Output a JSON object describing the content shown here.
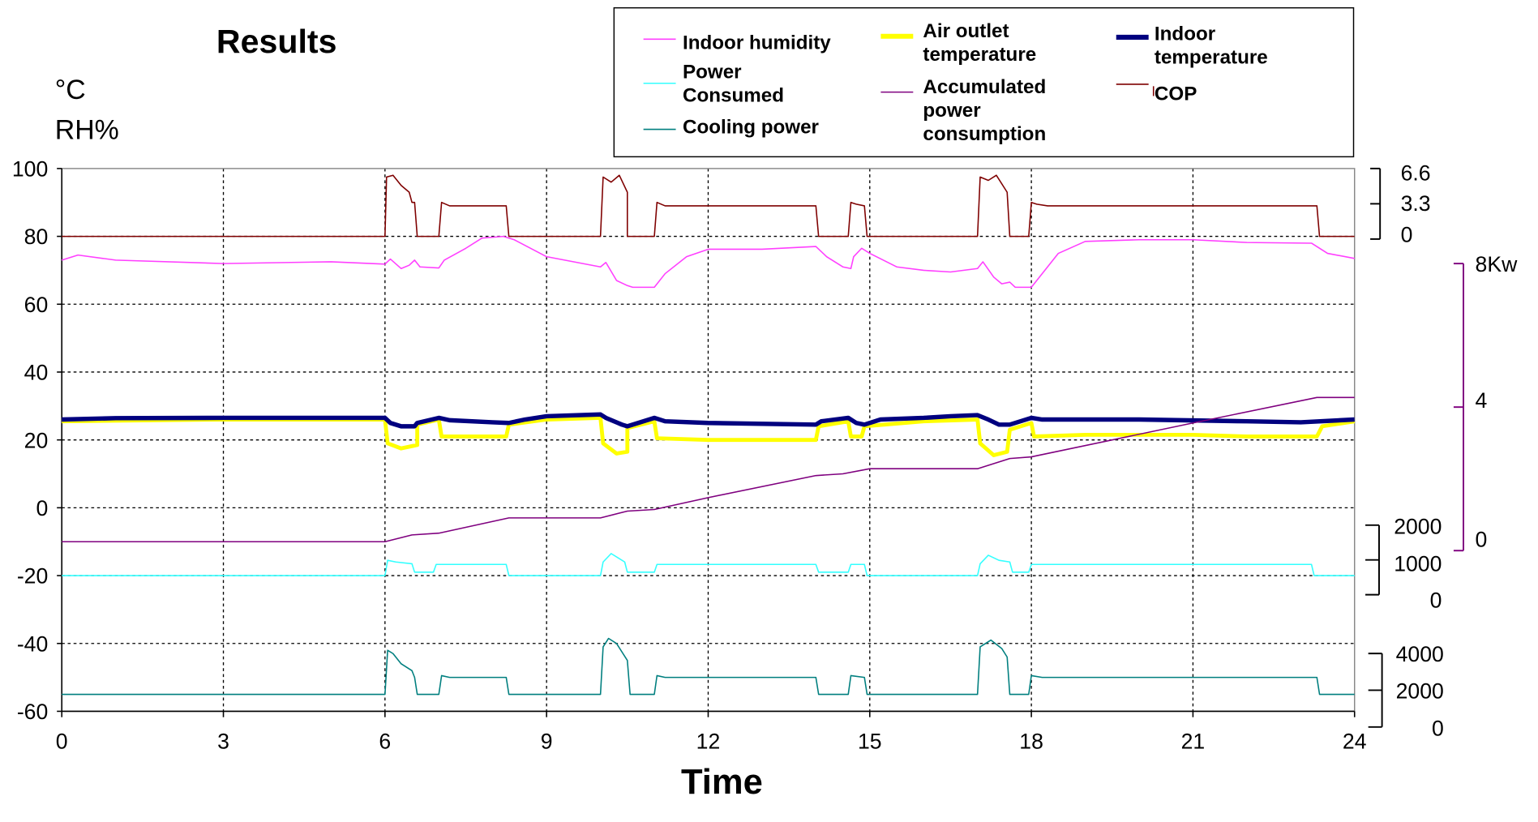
{
  "chart_data": {
    "type": "line",
    "title": "Results",
    "ylabel": [
      "°C",
      "RH%"
    ],
    "xlabel": "Time",
    "xlim": [
      0,
      24
    ],
    "ylim": [
      -60,
      100
    ],
    "x_ticks": [
      "0",
      "3",
      "6",
      "9",
      "12",
      "15",
      "18",
      "21",
      "24"
    ],
    "y_ticks": [
      "100",
      "80",
      "60",
      "40",
      "20",
      "0",
      "-20",
      "-40",
      "-60"
    ],
    "grid": true,
    "legend_position": "top-right",
    "legend": [
      {
        "label": [
          "Indoor humidity"
        ],
        "color": "#ff3fff"
      },
      {
        "label": [
          "Air outlet",
          "temperature"
        ],
        "color": "#ffff00"
      },
      {
        "label": [
          "Indoor",
          "temperature"
        ],
        "color": "#00007f"
      },
      {
        "label": [
          "Power",
          "Consumed"
        ],
        "color": "#33ffff"
      },
      {
        "label": [
          "Accumulated",
          "power",
          "consumption"
        ],
        "color": "#7f007f"
      },
      {
        "label": [
          "COP"
        ],
        "color": "#7f0000"
      },
      {
        "label": [
          "Cooling power"
        ],
        "color": "#007f7f"
      }
    ],
    "secondary_axes": [
      {
        "series": "COP",
        "ticks": [
          "6.6",
          "3.3",
          "0"
        ],
        "color": "#000000"
      },
      {
        "series": "Accumulated power consumption",
        "ticks": [
          "8Kw",
          "4",
          "0"
        ],
        "color": "#7f007f"
      },
      {
        "series": "Power Consumed",
        "ticks": [
          "2000",
          "1000",
          "0"
        ],
        "color": "#000000"
      },
      {
        "series": "Cooling power",
        "ticks": [
          "4000",
          "2000",
          "0"
        ],
        "color": "#000000"
      }
    ],
    "series": [
      {
        "name": "Indoor humidity",
        "color": "#ff3fff",
        "width": 1.3,
        "points": [
          [
            0,
            73
          ],
          [
            0.3,
            74.5
          ],
          [
            1,
            73
          ],
          [
            3,
            72
          ],
          [
            5,
            72.5
          ],
          [
            6,
            71.8
          ],
          [
            6.1,
            73.3
          ],
          [
            6.3,
            70.5
          ],
          [
            6.45,
            71.5
          ],
          [
            6.55,
            73
          ],
          [
            6.65,
            71
          ],
          [
            7,
            70.7
          ],
          [
            7.1,
            73
          ],
          [
            7.5,
            76.5
          ],
          [
            7.8,
            79.5
          ],
          [
            8.2,
            80
          ],
          [
            8.4,
            79
          ],
          [
            9,
            74
          ],
          [
            10,
            71
          ],
          [
            10.1,
            72.3
          ],
          [
            10.3,
            67
          ],
          [
            10.5,
            65.5
          ],
          [
            10.6,
            65
          ],
          [
            11,
            65
          ],
          [
            11.2,
            69
          ],
          [
            11.6,
            74
          ],
          [
            12,
            76.2
          ],
          [
            13,
            76.2
          ],
          [
            14,
            77
          ],
          [
            14.2,
            74
          ],
          [
            14.5,
            71
          ],
          [
            14.65,
            70.5
          ],
          [
            14.7,
            74
          ],
          [
            14.85,
            76.5
          ],
          [
            15,
            75
          ],
          [
            15.5,
            71
          ],
          [
            16,
            70
          ],
          [
            16.5,
            69.5
          ],
          [
            17,
            70.5
          ],
          [
            17.1,
            72.5
          ],
          [
            17.3,
            68
          ],
          [
            17.45,
            66
          ],
          [
            17.6,
            66.5
          ],
          [
            17.7,
            65
          ],
          [
            18,
            65
          ],
          [
            18.1,
            67
          ],
          [
            18.5,
            75
          ],
          [
            19,
            78.5
          ],
          [
            20,
            79
          ],
          [
            21,
            79
          ],
          [
            22,
            78.2
          ],
          [
            23.2,
            78
          ],
          [
            23.5,
            75
          ],
          [
            24,
            73.5
          ]
        ]
      },
      {
        "name": "Air outlet temperature",
        "color": "#ffff00",
        "width": 4,
        "points": [
          [
            0,
            25.5
          ],
          [
            3,
            26
          ],
          [
            6,
            26
          ],
          [
            6.05,
            19
          ],
          [
            6.3,
            17.5
          ],
          [
            6.6,
            18.5
          ],
          [
            6.6,
            24.5
          ],
          [
            7,
            26
          ],
          [
            7.05,
            21
          ],
          [
            8,
            21
          ],
          [
            8.25,
            21
          ],
          [
            8.3,
            24.5
          ],
          [
            9,
            26
          ],
          [
            10,
            26.5
          ],
          [
            10.05,
            19
          ],
          [
            10.3,
            16
          ],
          [
            10.5,
            16.5
          ],
          [
            10.5,
            23.5
          ],
          [
            11,
            25.5
          ],
          [
            11.05,
            20.5
          ],
          [
            12,
            20
          ],
          [
            14,
            20
          ],
          [
            14.05,
            24
          ],
          [
            14.6,
            25.5
          ],
          [
            14.65,
            21
          ],
          [
            14.85,
            21
          ],
          [
            14.9,
            24
          ],
          [
            16,
            25.5
          ],
          [
            17,
            26
          ],
          [
            17.05,
            19
          ],
          [
            17.3,
            15.5
          ],
          [
            17.55,
            16.5
          ],
          [
            17.6,
            23
          ],
          [
            18,
            25
          ],
          [
            18.05,
            21
          ],
          [
            19,
            21.5
          ],
          [
            21,
            21.5
          ],
          [
            22,
            21
          ],
          [
            23.3,
            21
          ],
          [
            23.4,
            24
          ],
          [
            24,
            25.5
          ]
        ]
      },
      {
        "name": "Indoor temperature",
        "color": "#00007f",
        "width": 4.5,
        "points": [
          [
            0,
            26
          ],
          [
            1,
            26.4
          ],
          [
            3,
            26.5
          ],
          [
            6,
            26.5
          ],
          [
            6.1,
            25
          ],
          [
            6.3,
            24
          ],
          [
            6.55,
            24
          ],
          [
            6.6,
            25
          ],
          [
            7,
            26.5
          ],
          [
            7.2,
            25.8
          ],
          [
            8,
            25.2
          ],
          [
            8.3,
            25
          ],
          [
            8.6,
            26
          ],
          [
            9,
            27
          ],
          [
            10,
            27.5
          ],
          [
            10.1,
            26.5
          ],
          [
            10.4,
            24.5
          ],
          [
            10.5,
            24
          ],
          [
            11,
            26.5
          ],
          [
            11.2,
            25.5
          ],
          [
            12,
            25
          ],
          [
            14,
            24.5
          ],
          [
            14.1,
            25.5
          ],
          [
            14.6,
            26.5
          ],
          [
            14.75,
            25
          ],
          [
            14.9,
            24.5
          ],
          [
            15.2,
            26
          ],
          [
            16,
            26.5
          ],
          [
            16.5,
            27
          ],
          [
            17,
            27.3
          ],
          [
            17.2,
            26
          ],
          [
            17.4,
            24.5
          ],
          [
            17.6,
            24.5
          ],
          [
            18,
            26.5
          ],
          [
            18.2,
            26
          ],
          [
            20,
            26
          ],
          [
            22,
            25.5
          ],
          [
            23,
            25.2
          ],
          [
            24,
            26
          ]
        ]
      },
      {
        "name": "Power Consumed",
        "color": "#33ffff",
        "width": 1.3,
        "points": [
          [
            0,
            -20
          ],
          [
            6,
            -20
          ],
          [
            6.05,
            -15.5
          ],
          [
            6.2,
            -16
          ],
          [
            6.5,
            -16.5
          ],
          [
            6.55,
            -19
          ],
          [
            6.9,
            -19
          ],
          [
            6.95,
            -16.7
          ],
          [
            8.25,
            -16.7
          ],
          [
            8.3,
            -20
          ],
          [
            10,
            -20
          ],
          [
            10.05,
            -16
          ],
          [
            10.2,
            -13.5
          ],
          [
            10.45,
            -16
          ],
          [
            10.5,
            -19
          ],
          [
            11,
            -19
          ],
          [
            11.05,
            -16.7
          ],
          [
            14,
            -16.7
          ],
          [
            14.05,
            -19
          ],
          [
            14.6,
            -19
          ],
          [
            14.65,
            -16.7
          ],
          [
            14.9,
            -16.7
          ],
          [
            14.95,
            -20
          ],
          [
            17,
            -20
          ],
          [
            17.05,
            -16.5
          ],
          [
            17.2,
            -14
          ],
          [
            17.4,
            -15.5
          ],
          [
            17.6,
            -16
          ],
          [
            17.65,
            -19
          ],
          [
            17.95,
            -19
          ],
          [
            18,
            -16.7
          ],
          [
            23.2,
            -16.7
          ],
          [
            23.25,
            -20
          ],
          [
            24,
            -20
          ]
        ]
      },
      {
        "name": "Accumulated power consumption",
        "color": "#7f007f",
        "width": 1.3,
        "points": [
          [
            0,
            -10
          ],
          [
            6,
            -10
          ],
          [
            6.5,
            -8
          ],
          [
            7,
            -7.5
          ],
          [
            8.3,
            -3
          ],
          [
            10,
            -3
          ],
          [
            10.5,
            -1
          ],
          [
            11,
            -0.5
          ],
          [
            12,
            3
          ],
          [
            14,
            9.5
          ],
          [
            14.5,
            10
          ],
          [
            15,
            11.5
          ],
          [
            17,
            11.5
          ],
          [
            17.6,
            14.5
          ],
          [
            18,
            15
          ],
          [
            21,
            25
          ],
          [
            23.3,
            32.5
          ],
          [
            24,
            32.5
          ]
        ]
      },
      {
        "name": "COP",
        "color": "#7f0000",
        "width": 1.3,
        "points": [
          [
            0,
            80
          ],
          [
            6,
            80
          ],
          [
            6.03,
            97.5
          ],
          [
            6.15,
            98
          ],
          [
            6.3,
            95
          ],
          [
            6.45,
            93
          ],
          [
            6.5,
            90
          ],
          [
            6.55,
            90
          ],
          [
            6.6,
            80
          ],
          [
            7,
            80
          ],
          [
            7.05,
            90
          ],
          [
            7.2,
            89
          ],
          [
            8.25,
            89
          ],
          [
            8.3,
            80
          ],
          [
            10,
            80
          ],
          [
            10.05,
            97.5
          ],
          [
            10.2,
            96
          ],
          [
            10.35,
            98
          ],
          [
            10.5,
            93
          ],
          [
            10.5,
            80
          ],
          [
            11,
            80
          ],
          [
            11.05,
            90
          ],
          [
            11.2,
            89
          ],
          [
            14,
            89
          ],
          [
            14.05,
            80
          ],
          [
            14.6,
            80
          ],
          [
            14.65,
            90
          ],
          [
            14.75,
            89.5
          ],
          [
            14.9,
            89
          ],
          [
            14.95,
            80
          ],
          [
            17,
            80
          ],
          [
            17.05,
            97.5
          ],
          [
            17.2,
            96.5
          ],
          [
            17.35,
            98
          ],
          [
            17.55,
            93
          ],
          [
            17.6,
            80
          ],
          [
            17.95,
            80
          ],
          [
            18,
            90
          ],
          [
            18.1,
            89.5
          ],
          [
            18.3,
            89
          ],
          [
            23.3,
            89
          ],
          [
            23.35,
            80
          ],
          [
            24,
            80
          ]
        ]
      },
      {
        "name": "Cooling power",
        "color": "#007f7f",
        "width": 1.3,
        "points": [
          [
            0,
            -55
          ],
          [
            6,
            -55
          ],
          [
            6.05,
            -42
          ],
          [
            6.15,
            -43
          ],
          [
            6.3,
            -46
          ],
          [
            6.5,
            -48
          ],
          [
            6.55,
            -50
          ],
          [
            6.6,
            -55
          ],
          [
            7,
            -55
          ],
          [
            7.05,
            -49.5
          ],
          [
            7.2,
            -50
          ],
          [
            8.25,
            -50
          ],
          [
            8.3,
            -55
          ],
          [
            10,
            -55
          ],
          [
            10.05,
            -41
          ],
          [
            10.15,
            -38.5
          ],
          [
            10.3,
            -40
          ],
          [
            10.5,
            -45
          ],
          [
            10.55,
            -55
          ],
          [
            11,
            -55
          ],
          [
            11.05,
            -49.5
          ],
          [
            11.2,
            -50
          ],
          [
            14,
            -50
          ],
          [
            14.05,
            -55
          ],
          [
            14.6,
            -55
          ],
          [
            14.65,
            -49.5
          ],
          [
            14.9,
            -50
          ],
          [
            14.95,
            -55
          ],
          [
            17,
            -55
          ],
          [
            17.05,
            -41
          ],
          [
            17.25,
            -39
          ],
          [
            17.45,
            -41.5
          ],
          [
            17.55,
            -44
          ],
          [
            17.6,
            -55
          ],
          [
            17.95,
            -55
          ],
          [
            18,
            -49.5
          ],
          [
            18.2,
            -50
          ],
          [
            23.3,
            -50
          ],
          [
            23.35,
            -55
          ],
          [
            24,
            -55
          ]
        ]
      }
    ]
  }
}
